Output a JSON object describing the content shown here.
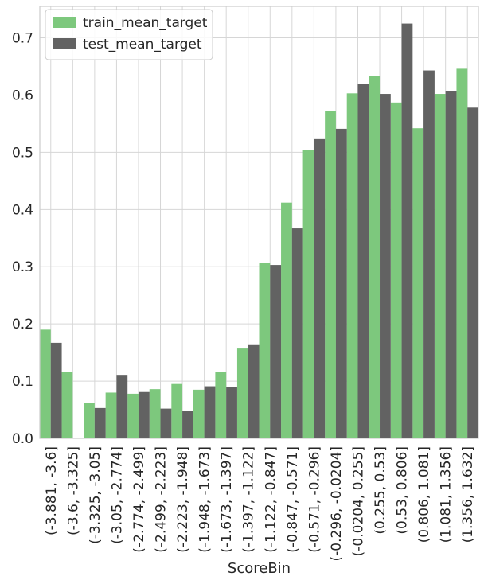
{
  "chart_data": {
    "type": "bar",
    "xlabel": "ScoreBin",
    "ylabel": "",
    "ylim": [
      0,
      0.755
    ],
    "yticks": [
      "0.0",
      "0.1",
      "0.2",
      "0.3",
      "0.4",
      "0.5",
      "0.6",
      "0.7"
    ],
    "grid": true,
    "legend_position": "top-left",
    "categories": [
      "(-3.881, -3.6]",
      "(-3.6, -3.325]",
      "(-3.325, -3.05]",
      "(-3.05, -2.774]",
      "(-2.774, -2.499]",
      "(-2.499, -2.223]",
      "(-2.223, -1.948]",
      "(-1.948, -1.673]",
      "(-1.673, -1.397]",
      "(-1.397, -1.122]",
      "(-1.122, -0.847]",
      "(-0.847, -0.571]",
      "(-0.571, -0.296]",
      "(-0.296, -0.0204]",
      "(-0.0204, 0.255]",
      "(0.255, 0.53]",
      "(0.53, 0.806]",
      "(0.806, 1.081]",
      "(1.081, 1.356]",
      "(1.356, 1.632]"
    ],
    "series": [
      {
        "name": "train_mean_target",
        "color": "#7dc87d",
        "values": [
          0.19,
          0.116,
          0.062,
          0.08,
          0.078,
          0.086,
          0.095,
          0.085,
          0.116,
          0.157,
          0.307,
          0.412,
          0.504,
          0.572,
          0.603,
          0.633,
          0.587,
          0.542,
          0.602,
          0.646
        ]
      },
      {
        "name": "test_mean_target",
        "color": "#626262",
        "values": [
          0.167,
          0.0,
          0.053,
          0.111,
          0.081,
          0.052,
          0.048,
          0.091,
          0.09,
          0.163,
          0.303,
          0.367,
          0.523,
          0.541,
          0.62,
          0.602,
          0.725,
          0.643,
          0.607,
          0.578
        ]
      }
    ]
  }
}
